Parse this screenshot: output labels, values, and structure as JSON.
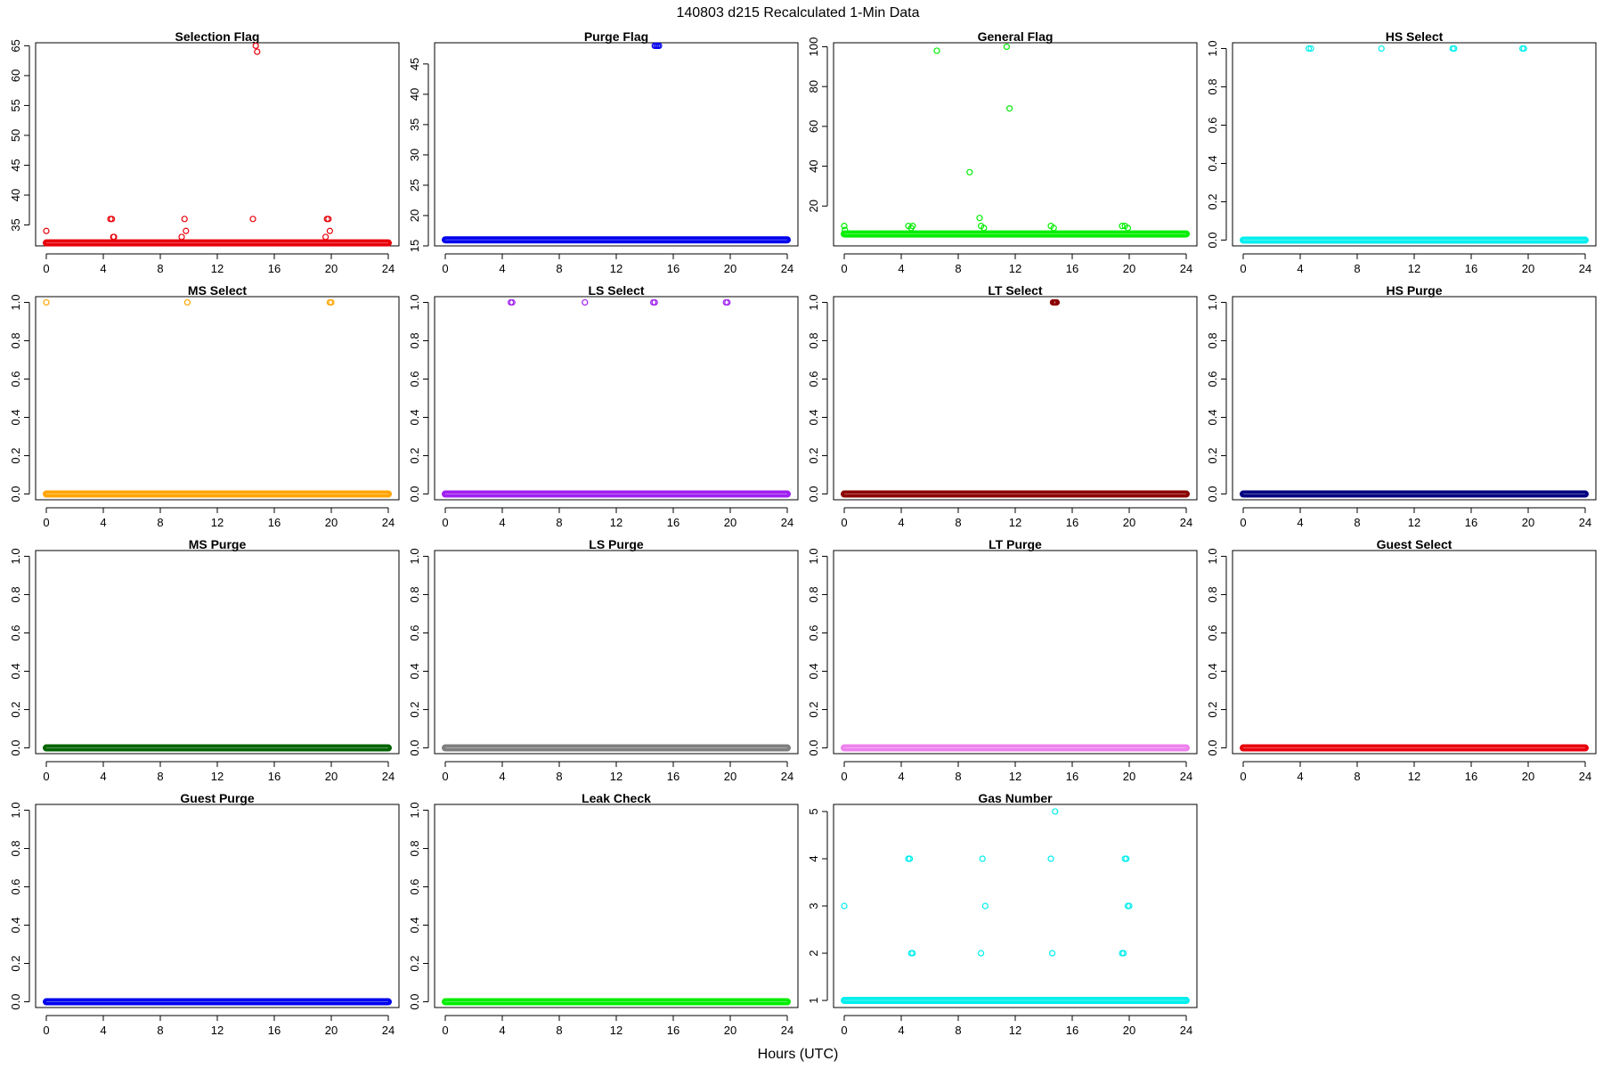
{
  "figure": {
    "title": "140803   d215   Recalculated 1-Min Data",
    "xlabel": "Hours (UTC)"
  },
  "chart_data": [
    {
      "type": "scatter",
      "title": "Selection Flag",
      "color": "#e8000b",
      "xlim": [
        0,
        24
      ],
      "ylim": [
        31.5,
        65.5
      ],
      "xticks": [
        0,
        4,
        8,
        12,
        16,
        20,
        24
      ],
      "yticks": [
        35,
        40,
        45,
        50,
        55,
        60,
        65
      ],
      "baseline": 32,
      "points": [
        [
          0.0,
          34
        ],
        [
          4.5,
          36
        ],
        [
          4.6,
          36
        ],
        [
          4.7,
          33
        ],
        [
          4.75,
          33
        ],
        [
          9.5,
          33
        ],
        [
          9.7,
          36
        ],
        [
          9.8,
          34
        ],
        [
          14.5,
          36
        ],
        [
          14.7,
          65
        ],
        [
          14.8,
          64
        ],
        [
          19.6,
          33
        ],
        [
          19.7,
          36
        ],
        [
          19.8,
          36
        ],
        [
          19.9,
          34
        ]
      ]
    },
    {
      "type": "scatter",
      "title": "Purge Flag",
      "color": "#0000ee",
      "xlim": [
        0,
        24
      ],
      "ylim": [
        15,
        48.5
      ],
      "xticks": [
        0,
        4,
        8,
        12,
        16,
        20,
        24
      ],
      "yticks": [
        15,
        20,
        25,
        30,
        35,
        40,
        45
      ],
      "baseline": 16,
      "points": [
        [
          14.7,
          48
        ],
        [
          14.8,
          48
        ],
        [
          14.9,
          48
        ],
        [
          15.0,
          48
        ]
      ]
    },
    {
      "type": "scatter",
      "title": "General Flag",
      "color": "#00ee00",
      "xlim": [
        0,
        24
      ],
      "ylim": [
        0,
        102
      ],
      "xticks": [
        0,
        4,
        8,
        12,
        16,
        20,
        24
      ],
      "yticks": [
        20,
        40,
        60,
        80,
        100
      ],
      "baseline": 6,
      "points": [
        [
          0.0,
          10
        ],
        [
          0.05,
          8
        ],
        [
          4.5,
          10
        ],
        [
          4.7,
          9
        ],
        [
          4.8,
          10
        ],
        [
          6.5,
          98
        ],
        [
          8.8,
          37
        ],
        [
          9.5,
          14
        ],
        [
          9.6,
          10
        ],
        [
          9.8,
          9
        ],
        [
          11.4,
          100
        ],
        [
          11.6,
          69
        ],
        [
          14.5,
          10
        ],
        [
          14.7,
          9
        ],
        [
          19.5,
          10
        ],
        [
          19.7,
          10
        ],
        [
          19.9,
          9
        ]
      ]
    },
    {
      "type": "scatter",
      "title": "HS Select",
      "color": "#00eeee",
      "xlim": [
        0,
        24
      ],
      "ylim": [
        -0.03,
        1.03
      ],
      "xticks": [
        0,
        4,
        8,
        12,
        16,
        20,
        24
      ],
      "yticks": [
        0.0,
        0.2,
        0.4,
        0.6,
        0.8,
        1.0
      ],
      "baseline": 0,
      "points": [
        [
          4.6,
          1
        ],
        [
          4.75,
          1
        ],
        [
          9.7,
          1
        ],
        [
          14.7,
          1
        ],
        [
          14.8,
          1
        ],
        [
          19.6,
          1
        ],
        [
          19.7,
          1
        ]
      ]
    },
    {
      "type": "scatter",
      "title": "MS Select",
      "color": "#ffa500",
      "xlim": [
        0,
        24
      ],
      "ylim": [
        -0.03,
        1.03
      ],
      "xticks": [
        0,
        4,
        8,
        12,
        16,
        20,
        24
      ],
      "yticks": [
        0.0,
        0.2,
        0.4,
        0.6,
        0.8,
        1.0
      ],
      "baseline": 0,
      "points": [
        [
          0.0,
          1
        ],
        [
          9.9,
          1
        ],
        [
          19.9,
          1
        ],
        [
          20.0,
          1
        ]
      ]
    },
    {
      "type": "scatter",
      "title": "LS Select",
      "color": "#a020f0",
      "xlim": [
        0,
        24
      ],
      "ylim": [
        -0.03,
        1.03
      ],
      "xticks": [
        0,
        4,
        8,
        12,
        16,
        20,
        24
      ],
      "yticks": [
        0.0,
        0.2,
        0.4,
        0.6,
        0.8,
        1.0
      ],
      "baseline": 0,
      "points": [
        [
          4.6,
          1
        ],
        [
          4.7,
          1
        ],
        [
          9.8,
          1
        ],
        [
          14.6,
          1
        ],
        [
          14.7,
          1
        ],
        [
          19.7,
          1
        ],
        [
          19.8,
          1
        ]
      ]
    },
    {
      "type": "scatter",
      "title": "LT Select",
      "color": "#8b0000",
      "xlim": [
        0,
        24
      ],
      "ylim": [
        -0.03,
        1.03
      ],
      "xticks": [
        0,
        4,
        8,
        12,
        16,
        20,
        24
      ],
      "yticks": [
        0.0,
        0.2,
        0.4,
        0.6,
        0.8,
        1.0
      ],
      "baseline": 0,
      "points": [
        [
          14.65,
          1
        ],
        [
          14.7,
          1
        ],
        [
          14.75,
          1
        ],
        [
          14.8,
          1
        ],
        [
          14.85,
          1
        ],
        [
          14.9,
          1
        ]
      ]
    },
    {
      "type": "scatter",
      "title": "HS Purge",
      "color": "#000080",
      "xlim": [
        0,
        24
      ],
      "ylim": [
        -0.03,
        1.03
      ],
      "xticks": [
        0,
        4,
        8,
        12,
        16,
        20,
        24
      ],
      "yticks": [
        0.0,
        0.2,
        0.4,
        0.6,
        0.8,
        1.0
      ],
      "baseline": 0,
      "points": []
    },
    {
      "type": "scatter",
      "title": "MS Purge",
      "color": "#006400",
      "xlim": [
        0,
        24
      ],
      "ylim": [
        -0.03,
        1.03
      ],
      "xticks": [
        0,
        4,
        8,
        12,
        16,
        20,
        24
      ],
      "yticks": [
        0.0,
        0.2,
        0.4,
        0.6,
        0.8,
        1.0
      ],
      "baseline": 0,
      "points": []
    },
    {
      "type": "scatter",
      "title": "LS Purge",
      "color": "#7f7f7f",
      "xlim": [
        0,
        24
      ],
      "ylim": [
        -0.03,
        1.03
      ],
      "xticks": [
        0,
        4,
        8,
        12,
        16,
        20,
        24
      ],
      "yticks": [
        0.0,
        0.2,
        0.4,
        0.6,
        0.8,
        1.0
      ],
      "baseline": 0,
      "points": []
    },
    {
      "type": "scatter",
      "title": "LT Purge",
      "color": "#ee82ee",
      "xlim": [
        0,
        24
      ],
      "ylim": [
        -0.03,
        1.03
      ],
      "xticks": [
        0,
        4,
        8,
        12,
        16,
        20,
        24
      ],
      "yticks": [
        0.0,
        0.2,
        0.4,
        0.6,
        0.8,
        1.0
      ],
      "baseline": 0,
      "points": []
    },
    {
      "type": "scatter",
      "title": "Guest Select",
      "color": "#e8000b",
      "xlim": [
        0,
        24
      ],
      "ylim": [
        -0.03,
        1.03
      ],
      "xticks": [
        0,
        4,
        8,
        12,
        16,
        20,
        24
      ],
      "yticks": [
        0.0,
        0.2,
        0.4,
        0.6,
        0.8,
        1.0
      ],
      "baseline": 0,
      "points": []
    },
    {
      "type": "scatter",
      "title": "Guest Purge",
      "color": "#0000ee",
      "xlim": [
        0,
        24
      ],
      "ylim": [
        -0.03,
        1.03
      ],
      "xticks": [
        0,
        4,
        8,
        12,
        16,
        20,
        24
      ],
      "yticks": [
        0.0,
        0.2,
        0.4,
        0.6,
        0.8,
        1.0
      ],
      "baseline": 0,
      "points": []
    },
    {
      "type": "scatter",
      "title": "Leak Check",
      "color": "#00ee00",
      "xlim": [
        0,
        24
      ],
      "ylim": [
        -0.03,
        1.03
      ],
      "xticks": [
        0,
        4,
        8,
        12,
        16,
        20,
        24
      ],
      "yticks": [
        0.0,
        0.2,
        0.4,
        0.6,
        0.8,
        1.0
      ],
      "baseline": 0,
      "points": []
    },
    {
      "type": "scatter",
      "title": "Gas Number",
      "color": "#00eeee",
      "xlim": [
        0,
        24
      ],
      "ylim": [
        0.85,
        5.15
      ],
      "xticks": [
        0,
        4,
        8,
        12,
        16,
        20,
        24
      ],
      "yticks": [
        1,
        2,
        3,
        4,
        5
      ],
      "baseline": 1,
      "points": [
        [
          0.0,
          3
        ],
        [
          4.5,
          4
        ],
        [
          4.6,
          4
        ],
        [
          4.7,
          2
        ],
        [
          4.8,
          2
        ],
        [
          9.6,
          2
        ],
        [
          9.7,
          4
        ],
        [
          9.9,
          3
        ],
        [
          14.5,
          4
        ],
        [
          14.6,
          2
        ],
        [
          14.8,
          5
        ],
        [
          19.5,
          2
        ],
        [
          19.6,
          2
        ],
        [
          19.7,
          4
        ],
        [
          19.8,
          4
        ],
        [
          19.9,
          3
        ],
        [
          20.0,
          3
        ]
      ]
    }
  ]
}
